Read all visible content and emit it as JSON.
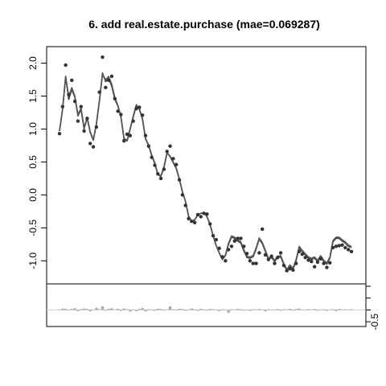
{
  "chart_data": {
    "type": "line",
    "title": "6. add real.estate.purchase (mae=0.069287)",
    "main_panel": {
      "ylim": [
        -1.35,
        2.25
      ],
      "y_ticks": [
        -1.0,
        -0.5,
        0.0,
        0.5,
        1.0,
        1.5,
        2.0
      ],
      "y_tick_labels": [
        "-1.0",
        "-0.5",
        "0.0",
        "0.5",
        "1.0",
        "1.5",
        "2.0"
      ],
      "x_range": [
        1,
        100
      ],
      "observed_points": [
        0.93,
        1.34,
        1.97,
        1.52,
        1.74,
        1.42,
        1.12,
        1.34,
        0.97,
        1.16,
        0.78,
        0.73,
        1.03,
        1.56,
        2.09,
        1.63,
        1.74,
        1.8,
        1.46,
        1.27,
        1.22,
        0.82,
        0.92,
        0.9,
        1.12,
        1.31,
        1.33,
        1.21,
        0.9,
        0.74,
        0.57,
        0.45,
        0.32,
        0.25,
        0.39,
        0.66,
        0.74,
        0.55,
        0.46,
        0.23,
        0.0,
        -0.16,
        -0.36,
        -0.4,
        -0.42,
        -0.3,
        -0.33,
        -0.28,
        -0.29,
        -0.44,
        -0.62,
        -0.68,
        -0.81,
        -0.94,
        -1.0,
        -0.83,
        -0.78,
        -0.7,
        -0.66,
        -0.66,
        -0.78,
        -0.89,
        -1.0,
        -1.04,
        -1.04,
        -0.88,
        -0.52,
        -0.91,
        -0.98,
        -0.93,
        -1.04,
        -0.95,
        -0.88,
        -1.07,
        -1.15,
        -1.12,
        -1.14,
        -1.04,
        -0.86,
        -0.9,
        -0.95,
        -0.99,
        -1.01,
        -1.09,
        -1.02,
        -0.97,
        -1.04,
        -1.1,
        -1.03,
        -0.8,
        -0.78,
        -0.77,
        -0.76,
        -0.8,
        -0.83,
        -0.86
      ],
      "series": [
        {
          "color": "#333333",
          "values": [
            0.97,
            1.3,
            1.8,
            1.45,
            1.6,
            1.48,
            1.2,
            1.3,
            1.0,
            1.17,
            0.95,
            0.83,
            1.07,
            1.43,
            1.85,
            1.72,
            1.77,
            1.65,
            1.45,
            1.35,
            1.18,
            0.85,
            0.82,
            1.0,
            1.18,
            1.36,
            1.3,
            1.15,
            0.85,
            0.75,
            0.6,
            0.48,
            0.31,
            0.28,
            0.42,
            0.64,
            0.58,
            0.49,
            0.4,
            0.24,
            0.05,
            -0.1,
            -0.32,
            -0.4,
            -0.38,
            -0.3,
            -0.28,
            -0.27,
            -0.33,
            -0.45,
            -0.62,
            -0.77,
            -0.88,
            -0.98,
            -0.92,
            -0.75,
            -0.64,
            -0.66,
            -0.7,
            -0.73,
            -0.85,
            -0.95,
            -0.96,
            -0.94,
            -0.82,
            -0.67,
            -0.74,
            -0.86,
            -0.98,
            -0.95,
            -1.01,
            -0.95,
            -0.94,
            -1.06,
            -1.15,
            -1.08,
            -1.13,
            -1.0,
            -0.8,
            -0.86,
            -0.91,
            -0.96,
            -0.98,
            -0.96,
            -1.01,
            -0.94,
            -1.01,
            -1.05,
            -0.96,
            -0.71,
            -0.66,
            -0.66,
            -0.7,
            -0.73,
            -0.78,
            -0.8
          ]
        },
        {
          "color": "#777777",
          "values": [
            0.97,
            1.3,
            1.78,
            1.5,
            1.63,
            1.5,
            1.22,
            1.32,
            1.02,
            1.18,
            0.96,
            0.84,
            1.08,
            1.44,
            1.83,
            1.75,
            1.8,
            1.68,
            1.48,
            1.36,
            1.19,
            0.86,
            0.83,
            1.01,
            1.2,
            1.37,
            1.31,
            1.16,
            0.86,
            0.76,
            0.61,
            0.49,
            0.32,
            0.29,
            0.43,
            0.64,
            0.59,
            0.5,
            0.41,
            0.25,
            0.05,
            -0.1,
            -0.32,
            -0.4,
            -0.38,
            -0.3,
            -0.28,
            -0.27,
            -0.33,
            -0.45,
            -0.62,
            -0.77,
            -0.88,
            -0.98,
            -0.91,
            -0.73,
            -0.62,
            -0.64,
            -0.68,
            -0.71,
            -0.83,
            -0.93,
            -0.94,
            -0.92,
            -0.8,
            -0.65,
            -0.72,
            -0.84,
            -0.96,
            -0.93,
            -0.99,
            -0.93,
            -0.92,
            -1.04,
            -1.13,
            -1.06,
            -1.11,
            -0.98,
            -0.78,
            -0.84,
            -0.89,
            -0.94,
            -0.96,
            -0.94,
            -0.99,
            -0.92,
            -0.99,
            -1.03,
            -0.94,
            -0.69,
            -0.64,
            -0.64,
            -0.68,
            -0.71,
            -0.76,
            -0.78
          ]
        },
        {
          "color": "#555555",
          "values": [
            0.97,
            1.3,
            1.79,
            1.48,
            1.62,
            1.49,
            1.21,
            1.31,
            1.01,
            1.17,
            0.95,
            0.83,
            1.07,
            1.43,
            1.84,
            1.74,
            1.79,
            1.67,
            1.47,
            1.35,
            1.18,
            0.85,
            0.82,
            1.0,
            1.19,
            1.36,
            1.3,
            1.15,
            0.85,
            0.75,
            0.6,
            0.48,
            0.31,
            0.28,
            0.42,
            0.64,
            0.58,
            0.49,
            0.4,
            0.24,
            0.05,
            -0.1,
            -0.32,
            -0.4,
            -0.38,
            -0.3,
            -0.28,
            -0.27,
            -0.33,
            -0.45,
            -0.62,
            -0.77,
            -0.88,
            -0.98,
            -0.92,
            -0.74,
            -0.63,
            -0.65,
            -0.69,
            -0.72,
            -0.84,
            -0.94,
            -0.95,
            -0.93,
            -0.81,
            -0.66,
            -0.73,
            -0.85,
            -0.97,
            -0.94,
            -1.0,
            -0.94,
            -0.93,
            -1.05,
            -1.14,
            -1.07,
            -1.12,
            -0.99,
            -0.79,
            -0.85,
            -0.9,
            -0.95,
            -0.97,
            -0.95,
            -1.0,
            -0.93,
            -1.0,
            -1.04,
            -0.95,
            -0.7,
            -0.65,
            -0.65,
            -0.69,
            -0.72,
            -0.77,
            -0.79
          ]
        }
      ]
    },
    "residual_panel": {
      "ylim": [
        -0.7,
        1.1
      ],
      "y_ticks": [
        -0.5
      ],
      "y_tick_labels": [
        "-0.5"
      ],
      "bar_color": "#aaaaaa",
      "values": [
        0.02,
        0.06,
        0.05,
        -0.02,
        0.04,
        0.07,
        -0.05,
        0.03,
        0.06,
        0.04,
        -0.06,
        0.02,
        0.09,
        0.03,
        0.15,
        -0.03,
        0.05,
        0.07,
        0.02,
        0.05,
        -0.04,
        0.06,
        0.03,
        -0.07,
        0.02,
        -0.05,
        0.04,
        0.08,
        -0.06,
        0.03,
        0.02,
        -0.04,
        0.05,
        0.04,
        -0.03,
        0.02,
        0.15,
        0.03,
        -0.02,
        0.05,
        0.04,
        -0.03,
        0.02,
        0.06,
        0.03,
        -0.04,
        0.05,
        0.02,
        -0.03,
        0.04,
        0.03,
        0.02,
        -0.05,
        0.03,
        0.02,
        -0.12,
        0.03,
        0.02,
        0.04,
        0.03,
        -0.03,
        0.02,
        -0.04,
        0.03,
        0.02,
        0.04,
        0.02,
        -0.06,
        0.03,
        0.02,
        -0.02,
        0.04,
        -0.04,
        0.03,
        0.02,
        0.05,
        -0.03,
        0.04,
        0.06,
        0.02,
        -0.02,
        0.03,
        0.02,
        0.04,
        -0.03,
        0.02,
        0.03,
        -0.04,
        0.02,
        0.03,
        -0.05,
        0.04,
        0.02,
        0.03,
        -0.02,
        0.03
      ]
    }
  }
}
